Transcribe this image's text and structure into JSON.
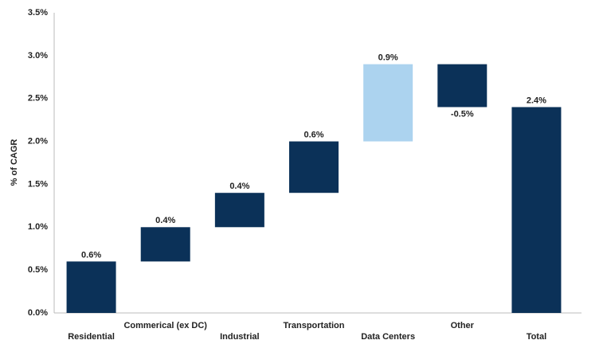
{
  "chart_data": {
    "type": "waterfall",
    "y_label": "% of CAGR",
    "categories": [
      "Residential",
      "Commerical (ex DC)",
      "Industrial",
      "Transportation",
      "Data Centers",
      "Other",
      "Total"
    ],
    "values": [
      0.6,
      0.4,
      0.4,
      0.6,
      0.9,
      -0.5,
      2.4
    ],
    "value_labels": [
      "0.6%",
      "0.4%",
      "0.4%",
      "0.6%",
      "0.9%",
      "-0.5%",
      "2.4%"
    ],
    "is_total": [
      false,
      false,
      false,
      false,
      false,
      false,
      true
    ],
    "colors": [
      "#0b3158",
      "#0b3158",
      "#0b3158",
      "#0b3158",
      "#acd3ef",
      "#0b3158",
      "#0b3158"
    ],
    "ylim": [
      0,
      3.5
    ],
    "yticks": [
      {
        "value": 0,
        "label": "0.0%"
      },
      {
        "value": 0.5,
        "label": "0.5%"
      },
      {
        "value": 1,
        "label": "1.0%"
      },
      {
        "value": 1.5,
        "label": "1.5%"
      },
      {
        "value": 2,
        "label": "2.0%"
      },
      {
        "value": 2.5,
        "label": "2.5%"
      },
      {
        "value": 3,
        "label": "3.0%"
      },
      {
        "value": 3.5,
        "label": "3.5%"
      }
    ],
    "grid": false
  }
}
